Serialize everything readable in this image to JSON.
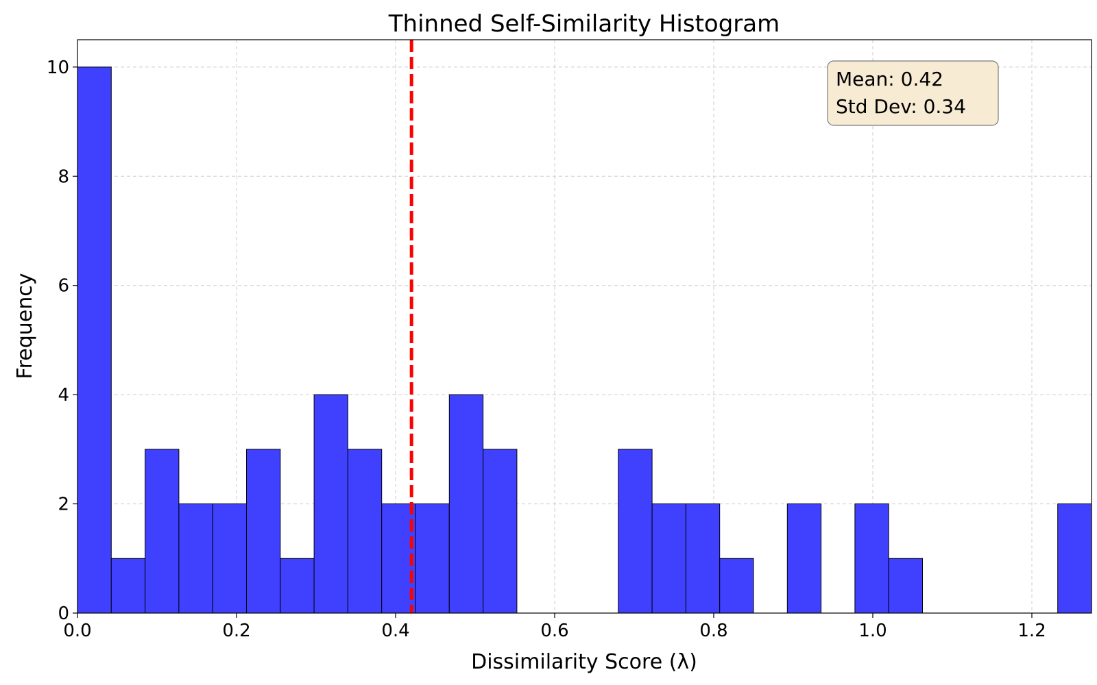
{
  "chart_data": {
    "type": "bar",
    "title": "Thinned Self-Similarity Histogram",
    "xlabel": "Dissimilarity Score (λ)",
    "ylabel": "Frequency",
    "xlim": [
      0.0,
      1.275
    ],
    "ylim": [
      0,
      10.5
    ],
    "x_ticks": [
      0.0,
      0.2,
      0.4,
      0.6,
      0.8,
      1.0,
      1.2
    ],
    "x_tick_labels": [
      "0.0",
      "0.2",
      "0.4",
      "0.6",
      "0.8",
      "1.0",
      "1.2"
    ],
    "y_ticks": [
      0,
      2,
      4,
      6,
      8,
      10
    ],
    "y_tick_labels": [
      "0",
      "2",
      "4",
      "6",
      "8",
      "10"
    ],
    "grid": true,
    "bin_start": 0.0,
    "bin_width": 0.0425,
    "counts": [
      10,
      1,
      3,
      2,
      2,
      3,
      1,
      4,
      3,
      2,
      2,
      4,
      3,
      0,
      0,
      0,
      3,
      2,
      2,
      1,
      0,
      2,
      0,
      2,
      1,
      0,
      0,
      0,
      0,
      2
    ],
    "bar_color": "#4040ff",
    "bar_edge_color": "#000000",
    "mean_line": {
      "value": 0.42,
      "color": "#ff0000",
      "style": "dashed"
    },
    "stats_box": {
      "mean_text": "Mean: 0.42",
      "std_text": "Std Dev: 0.34",
      "placement": "top-right",
      "background": "#f7ebd4",
      "border": "#7a7a7a"
    }
  }
}
